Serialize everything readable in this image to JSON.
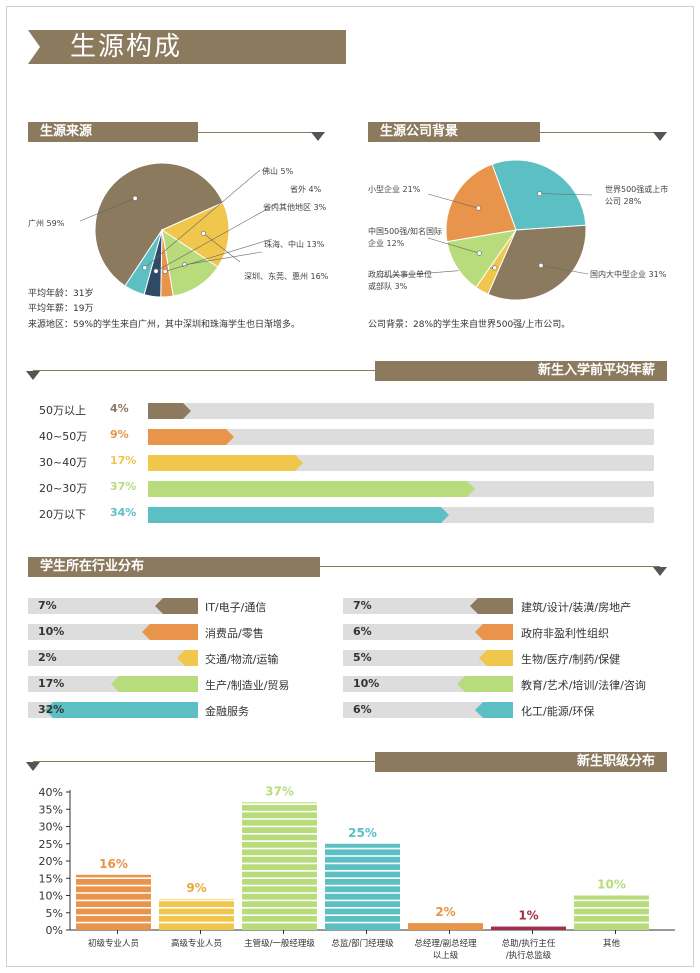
{
  "title": "生源构成",
  "source": {
    "heading": "生源来源",
    "chart_labels": [
      {
        "text": "佛山 5%"
      },
      {
        "text": "省外 4%"
      },
      {
        "text": "省内其他地区 3%"
      },
      {
        "text": "珠海、中山 13%"
      },
      {
        "text": "深圳、东莞、惠州 16%"
      },
      {
        "text": "广州 59%"
      }
    ],
    "stats": [
      "平均年龄：31岁",
      "平均年薪：19万",
      "来源地区：59%的学生来自广州，其中深圳和珠海学生也日渐增多。"
    ]
  },
  "company": {
    "heading": "生源公司背景",
    "chart_labels": [
      {
        "text": "小型企业 21%"
      },
      {
        "text": "中国500强/知名国际企业 12%",
        "line1": "中国500强/知名国际",
        "line2": "企业 12%"
      },
      {
        "text": "政府机关事业单位或部队 3%",
        "line1": "政府机关事业单位",
        "line2": "或部队 3%"
      },
      {
        "text": "世界500强或上市公司 28%",
        "line1": "世界500强或上市",
        "line2": "公司 28%"
      },
      {
        "text": "国内大中型企业 31%"
      }
    ],
    "note": "公司背景：28%的学生来自世界500强/上市公司。"
  },
  "salary": {
    "heading": "新生入学前平均年薪",
    "rows": [
      {
        "label": "50万以上",
        "pct_text": "4%",
        "value": 4,
        "color": "#8c7a5f"
      },
      {
        "label": "40~50万",
        "pct_text": "9%",
        "value": 9,
        "color": "#e8944a"
      },
      {
        "label": "30~40万",
        "pct_text": "17%",
        "value": 17,
        "color": "#f0c64d"
      },
      {
        "label": "20~30万",
        "pct_text": "37%",
        "value": 37,
        "color": "#b8dc7c"
      },
      {
        "label": "20万以下",
        "pct_text": "34%",
        "value": 34,
        "color": "#5bbfc3"
      }
    ]
  },
  "industry": {
    "heading": "学生所在行业分布",
    "left": [
      {
        "pct": "7%",
        "name": "IT/电子/通信",
        "value": 7,
        "color": "#8c7a5f"
      },
      {
        "pct": "10%",
        "name": "消费品/零售",
        "value": 10,
        "color": "#e8944a"
      },
      {
        "pct": "2%",
        "name": "交通/物流/运输",
        "value": 2,
        "color": "#f0c64d"
      },
      {
        "pct": "17%",
        "name": "生产/制造业/贸易",
        "value": 17,
        "color": "#b8dc7c"
      },
      {
        "pct": "32%",
        "name": "金融服务",
        "value": 32,
        "color": "#5bbfc3"
      }
    ],
    "right": [
      {
        "pct": "7%",
        "name": "建筑/设计/装潢/房地产",
        "value": 7,
        "color": "#8c7a5f"
      },
      {
        "pct": "6%",
        "name": "政府非盈利性组织",
        "value": 6,
        "color": "#e8944a"
      },
      {
        "pct": "5%",
        "name": "生物/医疗/制药/保健",
        "value": 5,
        "color": "#f0c64d"
      },
      {
        "pct": "10%",
        "name": "教育/艺术/培训/法律/咨询",
        "value": 10,
        "color": "#b8dc7c"
      },
      {
        "pct": "6%",
        "name": "化工/能源/环保",
        "value": 6,
        "color": "#5bbfc3"
      }
    ]
  },
  "level": {
    "heading": "新生职级分布"
  },
  "chart_data": [
    {
      "type": "pie",
      "categories": [
        "广州",
        "深圳、东莞、惠州",
        "珠海、中山",
        "省内其他地区",
        "省外",
        "佛山"
      ],
      "values": [
        59,
        16,
        13,
        3,
        4,
        5
      ],
      "colors": [
        "#8c7a5f",
        "#f0c64d",
        "#b8dc7c",
        "#e8944a",
        "#2e4a66",
        "#5bbfc3"
      ]
    },
    {
      "type": "pie",
      "categories": [
        "世界500强或上市公司",
        "国内大中型企业",
        "政府机关事业单位或部队",
        "中国500强/知名国际企业",
        "小型企业"
      ],
      "values": [
        28,
        31,
        3,
        12,
        21
      ],
      "colors": [
        "#5bbfc3",
        "#8c7a5f",
        "#f0c64d",
        "#b8dc7c",
        "#e8944a"
      ]
    },
    {
      "type": "bar",
      "categories": [
        "初级专业人员",
        "高级专业人员",
        "主管级/一般经理级",
        "总监/部门经理级",
        "总经理/副总经理以上级",
        "总助/执行主任/执行总监级",
        "其他"
      ],
      "category_lines": [
        [
          "初级专业人员"
        ],
        [
          "高级专业人员"
        ],
        [
          "主管级/一般经理级"
        ],
        [
          "总监/部门经理级"
        ],
        [
          "总经理/副总经理",
          "以上级"
        ],
        [
          "总助/执行主任",
          "/执行总监级"
        ],
        [
          "其他"
        ]
      ],
      "values": [
        16,
        9,
        37,
        25,
        2,
        1,
        10
      ],
      "labels": [
        "16%",
        "9%",
        "37%",
        "25%",
        "2%",
        "1%",
        "10%"
      ],
      "colors": [
        "#e8944a",
        "#f0c64d",
        "#b8dc7c",
        "#5bbfc3",
        "#e8944a",
        "#a0304a",
        "#b8dc7c"
      ],
      "label_colors": [
        "#e8944a",
        "#e8a93a",
        "#b8dc7c",
        "#5bbfc3",
        "#e8944a",
        "#a0304a",
        "#b8dc7c"
      ],
      "ylim": [
        0,
        40
      ],
      "yticks": [
        "0%",
        "5%",
        "10%",
        "15%",
        "20%",
        "25%",
        "30%",
        "35%",
        "40%"
      ]
    }
  ]
}
